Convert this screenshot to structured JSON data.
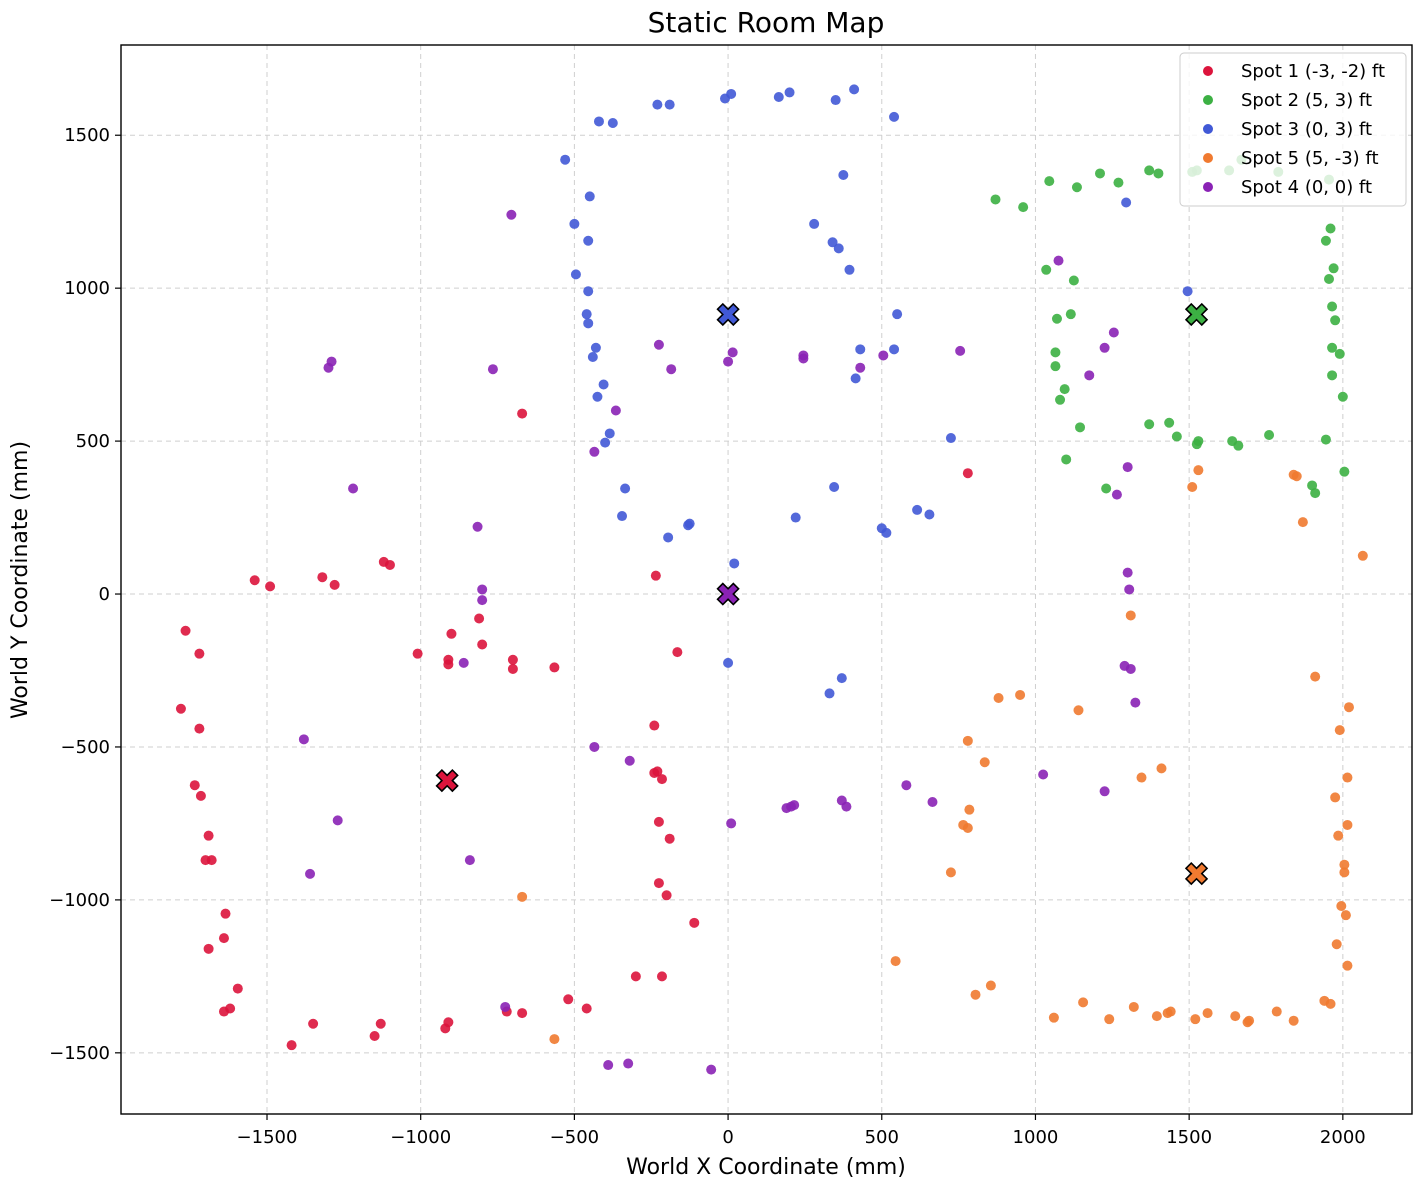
{
  "chart_data": {
    "type": "scatter",
    "title": "Static Room Map",
    "xlabel": "World X Coordinate (mm)",
    "ylabel": "World Y Coordinate (mm)",
    "xlim": [
      -1975,
      2225
    ],
    "ylim": [
      -1700,
      1795
    ],
    "xticks": [
      -1500,
      -1000,
      -500,
      0,
      500,
      1000,
      1500,
      2000
    ],
    "yticks": [
      -1500,
      -1000,
      -500,
      0,
      500,
      1000,
      1500
    ],
    "grid": true,
    "legend_position": "top-right",
    "series": [
      {
        "name": "Spot 1 (-3, -2) ft",
        "color": "#dc143c",
        "marker": [
          -914,
          -610
        ],
        "points": [
          [
            -1780,
            -375
          ],
          [
            -1765,
            -120
          ],
          [
            -1720,
            -195
          ],
          [
            -1720,
            -440
          ],
          [
            -1735,
            -625
          ],
          [
            -1715,
            -660
          ],
          [
            -1690,
            -790
          ],
          [
            -1700,
            -870
          ],
          [
            -1680,
            -870
          ],
          [
            -1635,
            -1045
          ],
          [
            -1640,
            -1125
          ],
          [
            -1690,
            -1160
          ],
          [
            -1595,
            -1290
          ],
          [
            -1640,
            -1365
          ],
          [
            -1620,
            -1355
          ],
          [
            -1540,
            45
          ],
          [
            -1490,
            25
          ],
          [
            -1420,
            -1475
          ],
          [
            -1350,
            -1405
          ],
          [
            -1320,
            55
          ],
          [
            -1280,
            30
          ],
          [
            -1150,
            -1445
          ],
          [
            -1130,
            -1405
          ],
          [
            -1120,
            105
          ],
          [
            -1100,
            95
          ],
          [
            -1010,
            -195
          ],
          [
            -920,
            -1420
          ],
          [
            -910,
            -1400
          ],
          [
            -910,
            -230
          ],
          [
            -910,
            -215
          ],
          [
            -900,
            -130
          ],
          [
            -810,
            -80
          ],
          [
            -800,
            -165
          ],
          [
            -700,
            -215
          ],
          [
            -700,
            -245
          ],
          [
            -670,
            590
          ],
          [
            -565,
            -240
          ],
          [
            -520,
            -1325
          ],
          [
            -460,
            -1355
          ],
          [
            -300,
            -1250
          ],
          [
            -240,
            -430
          ],
          [
            -240,
            -585
          ],
          [
            -235,
            60
          ],
          [
            -230,
            -580
          ],
          [
            -225,
            -745
          ],
          [
            -225,
            -945
          ],
          [
            -215,
            -605
          ],
          [
            -215,
            -1250
          ],
          [
            -200,
            -985
          ],
          [
            -190,
            -800
          ],
          [
            -165,
            -190
          ],
          [
            -110,
            -1075
          ],
          [
            780,
            395
          ],
          [
            -670,
            -1370
          ],
          [
            -720,
            -1365
          ]
        ]
      },
      {
        "name": "Spot 2 (5, 3) ft",
        "color": "#3cb043",
        "marker": [
          1524,
          914
        ],
        "points": [
          [
            870,
            1290
          ],
          [
            960,
            1265
          ],
          [
            1035,
            1060
          ],
          [
            1045,
            1350
          ],
          [
            1065,
            745
          ],
          [
            1065,
            790
          ],
          [
            1070,
            900
          ],
          [
            1080,
            635
          ],
          [
            1095,
            670
          ],
          [
            1100,
            440
          ],
          [
            1115,
            915
          ],
          [
            1125,
            1025
          ],
          [
            1135,
            1330
          ],
          [
            1145,
            545
          ],
          [
            1210,
            1375
          ],
          [
            1230,
            345
          ],
          [
            1270,
            1345
          ],
          [
            1370,
            555
          ],
          [
            1370,
            1385
          ],
          [
            1400,
            1375
          ],
          [
            1435,
            560
          ],
          [
            1460,
            515
          ],
          [
            1510,
            1380
          ],
          [
            1525,
            1385
          ],
          [
            1525,
            490
          ],
          [
            1530,
            500
          ],
          [
            1630,
            1385
          ],
          [
            1640,
            500
          ],
          [
            1660,
            485
          ],
          [
            1670,
            1420
          ],
          [
            1760,
            520
          ],
          [
            1790,
            1380
          ],
          [
            1900,
            355
          ],
          [
            1910,
            330
          ],
          [
            1945,
            1155
          ],
          [
            1945,
            505
          ],
          [
            1960,
            1195
          ],
          [
            1955,
            1030
          ],
          [
            1965,
            940
          ],
          [
            1965,
            805
          ],
          [
            1965,
            715
          ],
          [
            1970,
            1065
          ],
          [
            1975,
            895
          ],
          [
            1990,
            785
          ],
          [
            2000,
            645
          ],
          [
            2005,
            400
          ],
          [
            1955,
            1355
          ]
        ]
      },
      {
        "name": "Spot 3 (0, 3) ft",
        "color": "#4159d6",
        "marker": [
          0,
          914
        ],
        "points": [
          [
            -530,
            1420
          ],
          [
            -500,
            1210
          ],
          [
            -495,
            1045
          ],
          [
            -450,
            1300
          ],
          [
            -455,
            1155
          ],
          [
            -455,
            990
          ],
          [
            -460,
            915
          ],
          [
            -455,
            885
          ],
          [
            -440,
            775
          ],
          [
            -430,
            805
          ],
          [
            -425,
            645
          ],
          [
            -420,
            1545
          ],
          [
            -405,
            685
          ],
          [
            -400,
            495
          ],
          [
            -385,
            525
          ],
          [
            -375,
            1540
          ],
          [
            -345,
            255
          ],
          [
            -335,
            345
          ],
          [
            -230,
            1600
          ],
          [
            -190,
            1600
          ],
          [
            -195,
            185
          ],
          [
            -130,
            225
          ],
          [
            -125,
            230
          ],
          [
            -10,
            1620
          ],
          [
            0,
            -225
          ],
          [
            10,
            1635
          ],
          [
            20,
            100
          ],
          [
            165,
            1625
          ],
          [
            200,
            1640
          ],
          [
            220,
            250
          ],
          [
            280,
            1210
          ],
          [
            330,
            -325
          ],
          [
            340,
            1150
          ],
          [
            345,
            350
          ],
          [
            350,
            1615
          ],
          [
            360,
            1130
          ],
          [
            370,
            -275
          ],
          [
            375,
            1370
          ],
          [
            395,
            1060
          ],
          [
            410,
            1650
          ],
          [
            415,
            705
          ],
          [
            430,
            800
          ],
          [
            500,
            215
          ],
          [
            515,
            200
          ],
          [
            540,
            1560
          ],
          [
            540,
            800
          ],
          [
            550,
            915
          ],
          [
            615,
            275
          ],
          [
            655,
            260
          ],
          [
            725,
            510
          ],
          [
            1295,
            1280
          ],
          [
            1495,
            990
          ]
        ]
      },
      {
        "name": "Spot 5 (5, -3) ft",
        "color": "#f07a30",
        "marker": [
          1524,
          -914
        ],
        "points": [
          [
            -670,
            -990
          ],
          [
            -565,
            -1455
          ],
          [
            545,
            -1200
          ],
          [
            725,
            -910
          ],
          [
            765,
            -755
          ],
          [
            780,
            -765
          ],
          [
            780,
            -480
          ],
          [
            785,
            -705
          ],
          [
            805,
            -1310
          ],
          [
            835,
            -550
          ],
          [
            855,
            -1280
          ],
          [
            880,
            -340
          ],
          [
            950,
            -330
          ],
          [
            1060,
            -1385
          ],
          [
            1140,
            -380
          ],
          [
            1155,
            -1335
          ],
          [
            1240,
            -1390
          ],
          [
            1310,
            -70
          ],
          [
            1320,
            -1350
          ],
          [
            1345,
            -600
          ],
          [
            1395,
            -1380
          ],
          [
            1410,
            -570
          ],
          [
            1430,
            -1370
          ],
          [
            1440,
            -1365
          ],
          [
            1510,
            350
          ],
          [
            1520,
            -1390
          ],
          [
            1530,
            405
          ],
          [
            1560,
            -1370
          ],
          [
            1650,
            -1380
          ],
          [
            1690,
            -1400
          ],
          [
            1695,
            -1395
          ],
          [
            1785,
            -1365
          ],
          [
            1840,
            -1395
          ],
          [
            1840,
            390
          ],
          [
            1850,
            385
          ],
          [
            1870,
            235
          ],
          [
            1910,
            -270
          ],
          [
            1940,
            -1330
          ],
          [
            1960,
            -1340
          ],
          [
            1975,
            -665
          ],
          [
            1980,
            -1145
          ],
          [
            1985,
            -790
          ],
          [
            1990,
            -445
          ],
          [
            1995,
            -1020
          ],
          [
            2005,
            -885
          ],
          [
            2005,
            -910
          ],
          [
            2010,
            -1050
          ],
          [
            2015,
            -1215
          ],
          [
            2015,
            -755
          ],
          [
            2015,
            -600
          ],
          [
            2020,
            -370
          ],
          [
            2065,
            125
          ]
        ]
      },
      {
        "name": "Spot 4 (0, 0) ft",
        "color": "#8a22b5",
        "marker": [
          0,
          0
        ],
        "points": [
          [
            -1380,
            -475
          ],
          [
            -1300,
            740
          ],
          [
            -1290,
            760
          ],
          [
            -1270,
            -740
          ],
          [
            -1360,
            -915
          ],
          [
            -1220,
            345
          ],
          [
            -860,
            -225
          ],
          [
            -840,
            -870
          ],
          [
            -815,
            220
          ],
          [
            -800,
            15
          ],
          [
            -800,
            -20
          ],
          [
            -765,
            735
          ],
          [
            -705,
            1240
          ],
          [
            -725,
            -1350
          ],
          [
            -435,
            465
          ],
          [
            -435,
            -500
          ],
          [
            -390,
            -1540
          ],
          [
            -365,
            600
          ],
          [
            -320,
            -545
          ],
          [
            -325,
            -1535
          ],
          [
            -225,
            815
          ],
          [
            -185,
            735
          ],
          [
            -55,
            -1555
          ],
          [
            0,
            760
          ],
          [
            15,
            790
          ],
          [
            10,
            -750
          ],
          [
            190,
            -700
          ],
          [
            205,
            -695
          ],
          [
            215,
            -690
          ],
          [
            245,
            780
          ],
          [
            245,
            770
          ],
          [
            370,
            -675
          ],
          [
            385,
            -695
          ],
          [
            430,
            740
          ],
          [
            505,
            780
          ],
          [
            580,
            -625
          ],
          [
            665,
            -680
          ],
          [
            755,
            795
          ],
          [
            1025,
            -590
          ],
          [
            1075,
            1090
          ],
          [
            1175,
            715
          ],
          [
            1225,
            -645
          ],
          [
            1225,
            805
          ],
          [
            1255,
            855
          ],
          [
            1265,
            325
          ],
          [
            1300,
            415
          ],
          [
            1300,
            70
          ],
          [
            1305,
            15
          ],
          [
            1290,
            -235
          ],
          [
            1310,
            -245
          ],
          [
            1325,
            -355
          ]
        ]
      }
    ]
  }
}
